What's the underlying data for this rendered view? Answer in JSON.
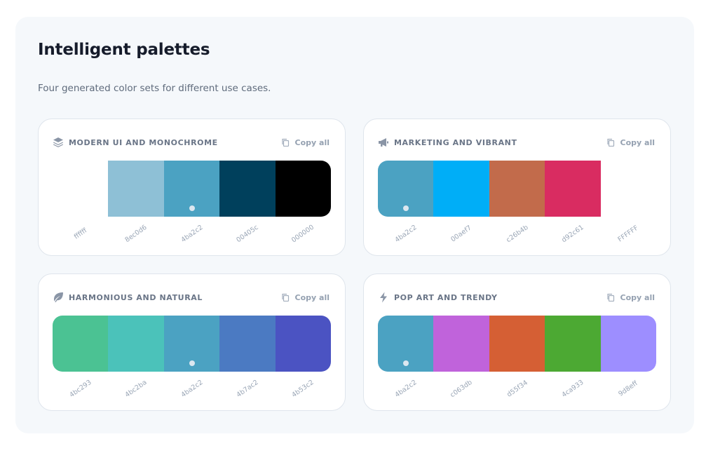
{
  "header": {
    "title": "Intelligent palettes",
    "subtitle": "Four generated color sets for different use cases."
  },
  "copy_label": "Copy all",
  "palettes": [
    {
      "title": "MODERN UI AND MONOCHROME",
      "icon": "layers-icon",
      "colors": [
        "#ffffff",
        "#8ec0d6",
        "#4ba2c2",
        "#00405c",
        "#000000"
      ],
      "labels": [
        "ffffff",
        "8ec0d6",
        "4ba2c2",
        "00405c",
        "000000"
      ],
      "marked_index": 2
    },
    {
      "title": "MARKETING AND VIBRANT",
      "icon": "megaphone-icon",
      "colors": [
        "#4ba2c2",
        "#00aef7",
        "#c26b4b",
        "#d92c61",
        "#FFFFFF"
      ],
      "labels": [
        "4ba2c2",
        "00aef7",
        "c26b4b",
        "d92c61",
        "FFFFFF"
      ],
      "marked_index": 0
    },
    {
      "title": "HARMONIOUS AND NATURAL",
      "icon": "leaf-icon",
      "colors": [
        "#4bc293",
        "#4bc2ba",
        "#4ba2c2",
        "#4b7ac2",
        "#4b53c2"
      ],
      "labels": [
        "4bc293",
        "4bc2ba",
        "4ba2c2",
        "4b7ac2",
        "4b53c2"
      ],
      "marked_index": 2
    },
    {
      "title": "POP ART AND TRENDY",
      "icon": "lightning-icon",
      "colors": [
        "#4ba2c2",
        "#c063db",
        "#d55f34",
        "#4ca933",
        "#9d8eff"
      ],
      "labels": [
        "4ba2c2",
        "c063db",
        "d55f34",
        "4ca933",
        "9d8eff"
      ],
      "marked_index": 0
    }
  ]
}
